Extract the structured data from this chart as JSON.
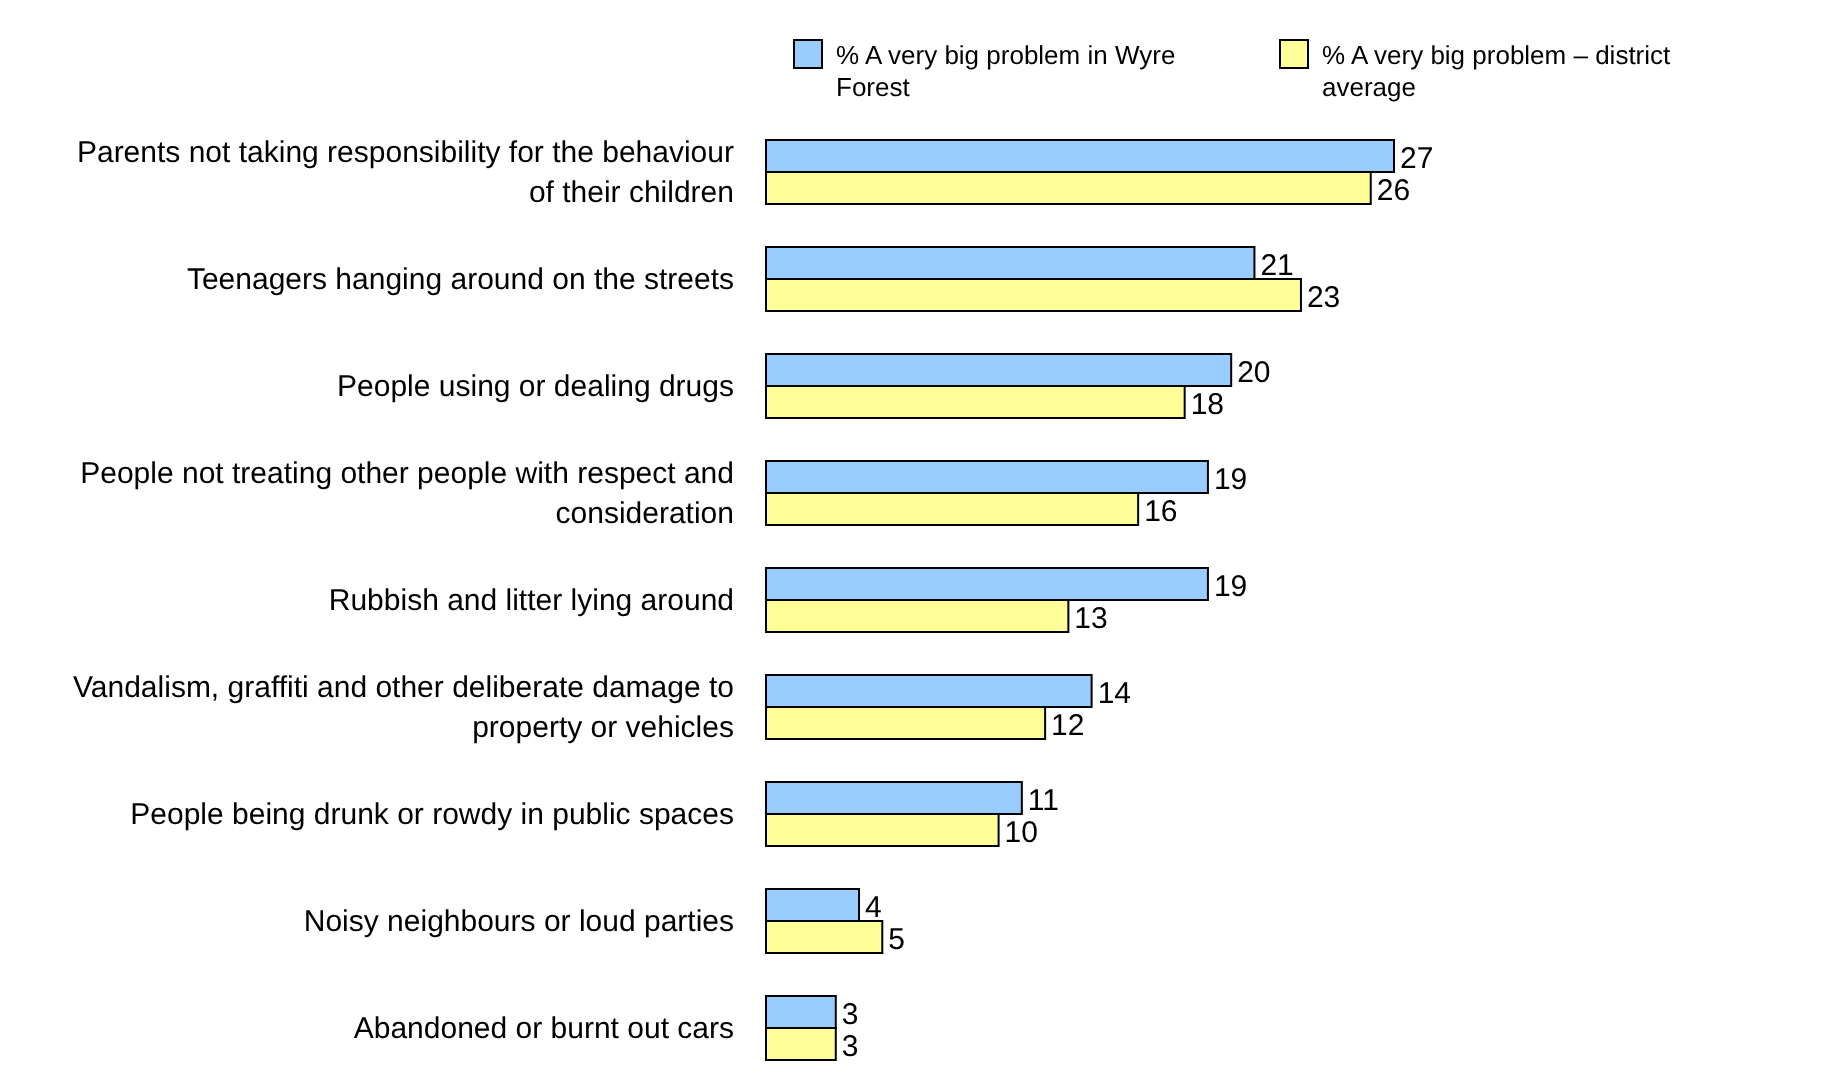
{
  "chart_data": {
    "type": "bar",
    "orientation": "horizontal",
    "data_labels": true,
    "legend": "top",
    "categories": [
      "Parents not taking responsibility for the behaviour of their children",
      "Teenagers hanging around on the streets",
      "People using or dealing drugs",
      "People not treating other people with respect and consideration",
      "Rubbish and litter lying around",
      "Vandalism, graffiti and other deliberate damage to property or vehicles",
      "People being drunk or rowdy in public spaces",
      "Noisy neighbours or loud parties",
      "Abandoned or burnt out cars"
    ],
    "series": [
      {
        "name": "% A very big problem in Wyre Forest",
        "color": "#99ccff",
        "values": [
          27,
          21,
          20,
          19,
          19,
          14,
          11,
          4,
          3
        ]
      },
      {
        "name": "% A very big problem – district average",
        "color": "#ffff99",
        "values": [
          26,
          23,
          18,
          16,
          13,
          12,
          10,
          5,
          3
        ]
      }
    ]
  }
}
